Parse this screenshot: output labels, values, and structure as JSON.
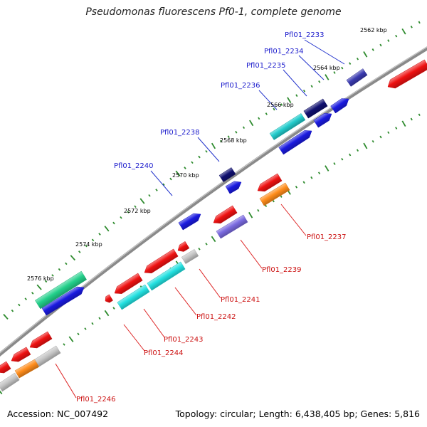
{
  "title": "Pseudomonas fluorescens Pf0-1, complete genome",
  "footer": {
    "accession": "Accession: NC_007492",
    "topology": "Topology: circular; Length: 6,438,405 bp; Genes: 5,816"
  },
  "colors": {
    "backbone": "#8a8a8a",
    "tick": "#2e8b2e",
    "upper_label": "#1a1acc",
    "lower_label": "#cc1111",
    "leader_upper": "#2233cc",
    "leader_lower": "#dd2222"
  },
  "scale_labels": [
    {
      "text": "2562 kbp"
    },
    {
      "text": "2564 kbp"
    },
    {
      "text": "2566 kbp"
    },
    {
      "text": "2568 kbp"
    },
    {
      "text": "2570 kbp"
    },
    {
      "text": "2572 kbp"
    },
    {
      "text": "2574 kbp"
    },
    {
      "text": "2576 kbp"
    }
  ],
  "gene_labels": [
    {
      "text": "Pfl01_2233",
      "strand": "upper"
    },
    {
      "text": "Pfl01_2234",
      "strand": "upper"
    },
    {
      "text": "Pfl01_2235",
      "strand": "upper"
    },
    {
      "text": "Pfl01_2236",
      "strand": "upper"
    },
    {
      "text": "Pfl01_2238",
      "strand": "upper"
    },
    {
      "text": "Pfl01_2240",
      "strand": "upper"
    },
    {
      "text": "Pfl01_2237",
      "strand": "lower"
    },
    {
      "text": "Pfl01_2239",
      "strand": "lower"
    },
    {
      "text": "Pfl01_2241",
      "strand": "lower"
    },
    {
      "text": "Pfl01_2242",
      "strand": "lower"
    },
    {
      "text": "Pfl01_2243",
      "strand": "lower"
    },
    {
      "text": "Pfl01_2244",
      "strand": "lower"
    },
    {
      "text": "Pfl01_2246",
      "strand": "lower"
    }
  ],
  "features": [
    {
      "name": "blue-plus-1",
      "color": "#1a1ae0"
    },
    {
      "name": "blue-plus-2",
      "color": "#1a1ae0"
    },
    {
      "name": "blue-plus-3",
      "color": "#1a1ae0"
    },
    {
      "name": "blue-plus-4",
      "color": "#1a1ae0"
    },
    {
      "name": "blue-plus-5",
      "color": "#1a1ae0"
    },
    {
      "name": "blue-plus-6",
      "color": "#1a1ae0"
    },
    {
      "name": "cyan-ring-1",
      "color": "#22cccc"
    },
    {
      "name": "navy-ring-1",
      "color": "#101070"
    },
    {
      "name": "navy-ring-2",
      "color": "#101070"
    },
    {
      "name": "steel-ring-1",
      "color": "#3a3ab0"
    },
    {
      "name": "green-ring-1",
      "color": "#22d08a"
    },
    {
      "name": "red-minus-1",
      "color": "#ee1111"
    },
    {
      "name": "red-minus-2",
      "color": "#ee1111"
    },
    {
      "name": "red-minus-3",
      "color": "#ee1111"
    },
    {
      "name": "red-minus-4",
      "color": "#ee1111"
    },
    {
      "name": "red-minus-5",
      "color": "#ee1111"
    },
    {
      "name": "red-minus-6",
      "color": "#ee1111"
    },
    {
      "name": "red-minus-7",
      "color": "#ee1111"
    },
    {
      "name": "red-minus-8",
      "color": "#ee1111"
    },
    {
      "name": "red-minus-9",
      "color": "#ee1111"
    },
    {
      "name": "red-minus-10",
      "color": "#ee1111"
    },
    {
      "name": "orange-ring-1",
      "color": "#ff8c1a"
    },
    {
      "name": "orange-ring-2",
      "color": "#ff8c1a"
    },
    {
      "name": "purple-ring-1",
      "color": "#7a6ae0"
    },
    {
      "name": "cyan-ring-2",
      "color": "#22e0e0"
    },
    {
      "name": "cyan-ring-3",
      "color": "#22e0e0"
    },
    {
      "name": "gray-ring-1",
      "color": "#c4c4c4"
    },
    {
      "name": "gray-ring-2",
      "color": "#c4c4c4"
    },
    {
      "name": "gray-ring-3",
      "color": "#c4c4c4"
    }
  ]
}
